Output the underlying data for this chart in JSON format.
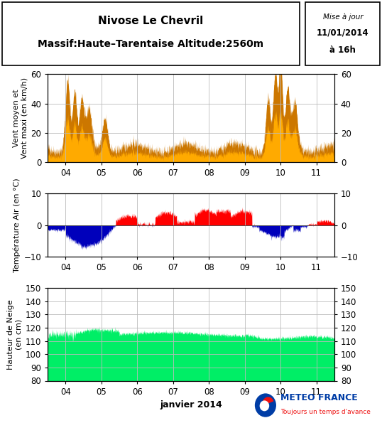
{
  "title_line1": "Nivose Le Chevril",
  "title_line2": "Massif:Haute–Tarentaise Altitude:2560m",
  "update_line1": "Mise à jour",
  "update_line2": "11/01/2014",
  "update_line3": "à 16h",
  "xlabel": "janvier 2014",
  "ylabel_wind": "Vent moyen et\nVent maxi (en km/h)",
  "ylabel_temp": "Température Air (en °C)",
  "ylabel_snow": "Hauteur de Neige\n(en cm)",
  "wind_ylim": [
    0,
    60
  ],
  "temp_ylim": [
    -10,
    10
  ],
  "snow_ylim": [
    80,
    150
  ],
  "wind_yticks": [
    0,
    20,
    40,
    60
  ],
  "temp_yticks": [
    -10,
    0,
    10
  ],
  "snow_yticks": [
    80,
    90,
    100,
    110,
    120,
    130,
    140,
    150
  ],
  "x_ticks": [
    4,
    5,
    6,
    7,
    8,
    9,
    10,
    11
  ],
  "x_lim": [
    3.5,
    11.5
  ],
  "wind_color_maxi": "#CC7700",
  "wind_color_mean": "#FFAA00",
  "temp_color_pos": "#FF0000",
  "temp_color_neg": "#0000BB",
  "snow_color": "#00EE66",
  "bg_color": "#FFFFFF",
  "grid_color": "#BBBBBB",
  "meteo_france_blue": "#003DA6",
  "meteo_france_red": "#EE1111",
  "meteo_france_text_blue": "#003DA6",
  "meteo_france_text_red": "#EE1111"
}
